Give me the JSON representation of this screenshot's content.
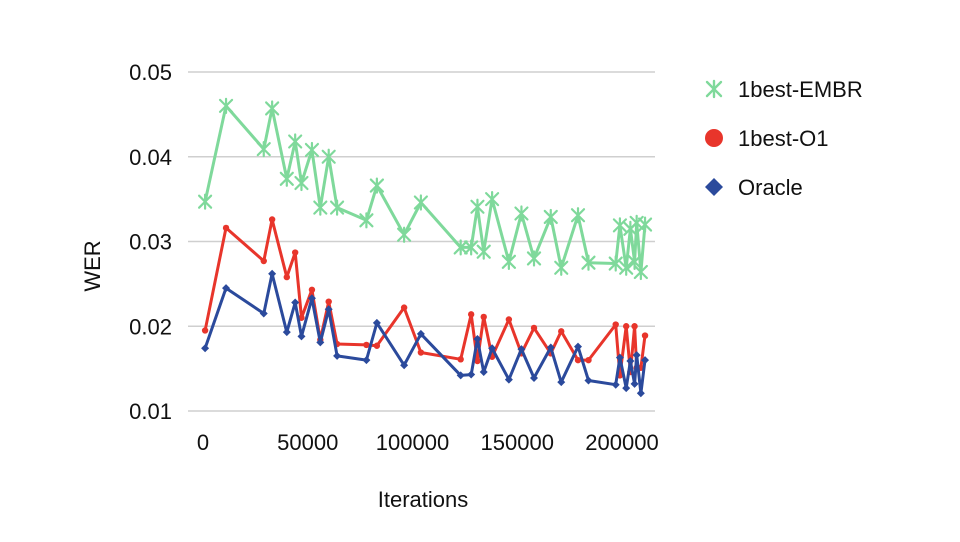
{
  "chart_data": {
    "type": "line",
    "title": "",
    "xlabel": "Iterations",
    "ylabel": "WER",
    "xlim": [
      0,
      210000
    ],
    "ylim": [
      0.01,
      0.05
    ],
    "grid": true,
    "legend_position": "right",
    "x_ticks": [
      "0",
      "50000",
      "100000",
      "150000",
      "200000"
    ],
    "y_ticks": [
      "0.01",
      "0.02",
      "0.03",
      "0.04",
      "0.05"
    ],
    "series": [
      {
        "name": "1best-EMBR",
        "color": "#7fd99b",
        "marker": "star",
        "points": [
          [
            1000,
            0.0347
          ],
          [
            11000,
            0.046
          ],
          [
            29000,
            0.0409
          ],
          [
            33000,
            0.0457
          ],
          [
            40000,
            0.0374
          ],
          [
            44000,
            0.0418
          ],
          [
            47000,
            0.0369
          ],
          [
            52000,
            0.0408
          ],
          [
            56000,
            0.034
          ],
          [
            60000,
            0.04
          ],
          [
            64000,
            0.034
          ],
          [
            78000,
            0.0325
          ],
          [
            83000,
            0.0366
          ],
          [
            96000,
            0.0308
          ],
          [
            104000,
            0.0346
          ],
          [
            123000,
            0.0293
          ],
          [
            128000,
            0.0293
          ],
          [
            131000,
            0.0341
          ],
          [
            134000,
            0.0288
          ],
          [
            138000,
            0.035
          ],
          [
            146000,
            0.0276
          ],
          [
            152000,
            0.0333
          ],
          [
            158000,
            0.028
          ],
          [
            166000,
            0.0329
          ],
          [
            171000,
            0.0269
          ],
          [
            179000,
            0.0331
          ],
          [
            184000,
            0.0275
          ],
          [
            197000,
            0.0274
          ],
          [
            199000,
            0.0319
          ],
          [
            202000,
            0.0269
          ],
          [
            204000,
            0.0315
          ],
          [
            206000,
            0.0276
          ],
          [
            207000,
            0.0322
          ],
          [
            209000,
            0.0264
          ],
          [
            211000,
            0.032
          ]
        ]
      },
      {
        "name": "1best-O1",
        "color": "#e8352b",
        "marker": "circle",
        "points": [
          [
            1000,
            0.0195
          ],
          [
            11000,
            0.0316
          ],
          [
            29000,
            0.0277
          ],
          [
            33000,
            0.0326
          ],
          [
            40000,
            0.0258
          ],
          [
            44000,
            0.0287
          ],
          [
            47000,
            0.021
          ],
          [
            52000,
            0.0243
          ],
          [
            56000,
            0.0184
          ],
          [
            60000,
            0.0229
          ],
          [
            64000,
            0.0179
          ],
          [
            78000,
            0.0178
          ],
          [
            83000,
            0.0177
          ],
          [
            96000,
            0.0222
          ],
          [
            104000,
            0.0169
          ],
          [
            123000,
            0.0161
          ],
          [
            128000,
            0.0214
          ],
          [
            131000,
            0.0159
          ],
          [
            134000,
            0.0211
          ],
          [
            138000,
            0.0164
          ],
          [
            146000,
            0.0208
          ],
          [
            152000,
            0.0168
          ],
          [
            158000,
            0.0198
          ],
          [
            166000,
            0.0168
          ],
          [
            171000,
            0.0194
          ],
          [
            179000,
            0.016
          ],
          [
            184000,
            0.016
          ],
          [
            197000,
            0.0202
          ],
          [
            199000,
            0.0142
          ],
          [
            202000,
            0.02
          ],
          [
            204000,
            0.0146
          ],
          [
            206000,
            0.02
          ],
          [
            207000,
            0.0151
          ],
          [
            209000,
            0.0151
          ],
          [
            211000,
            0.0189
          ]
        ]
      },
      {
        "name": "Oracle",
        "color": "#2b4a9c",
        "marker": "diamond",
        "points": [
          [
            1000,
            0.0174
          ],
          [
            11000,
            0.0245
          ],
          [
            29000,
            0.0215
          ],
          [
            33000,
            0.0262
          ],
          [
            40000,
            0.0193
          ],
          [
            44000,
            0.0228
          ],
          [
            47000,
            0.0188
          ],
          [
            52000,
            0.0233
          ],
          [
            56000,
            0.0181
          ],
          [
            60000,
            0.022
          ],
          [
            64000,
            0.0165
          ],
          [
            78000,
            0.016
          ],
          [
            83000,
            0.0204
          ],
          [
            96000,
            0.0154
          ],
          [
            104000,
            0.0191
          ],
          [
            123000,
            0.0142
          ],
          [
            128000,
            0.0143
          ],
          [
            131000,
            0.0185
          ],
          [
            134000,
            0.0146
          ],
          [
            138000,
            0.0174
          ],
          [
            146000,
            0.0137
          ],
          [
            152000,
            0.0173
          ],
          [
            158000,
            0.0139
          ],
          [
            166000,
            0.0175
          ],
          [
            171000,
            0.0134
          ],
          [
            179000,
            0.0176
          ],
          [
            184000,
            0.0136
          ],
          [
            197000,
            0.0131
          ],
          [
            199000,
            0.0163
          ],
          [
            202000,
            0.0127
          ],
          [
            204000,
            0.0159
          ],
          [
            206000,
            0.0132
          ],
          [
            207000,
            0.0166
          ],
          [
            209000,
            0.0121
          ],
          [
            211000,
            0.016
          ]
        ]
      }
    ]
  }
}
